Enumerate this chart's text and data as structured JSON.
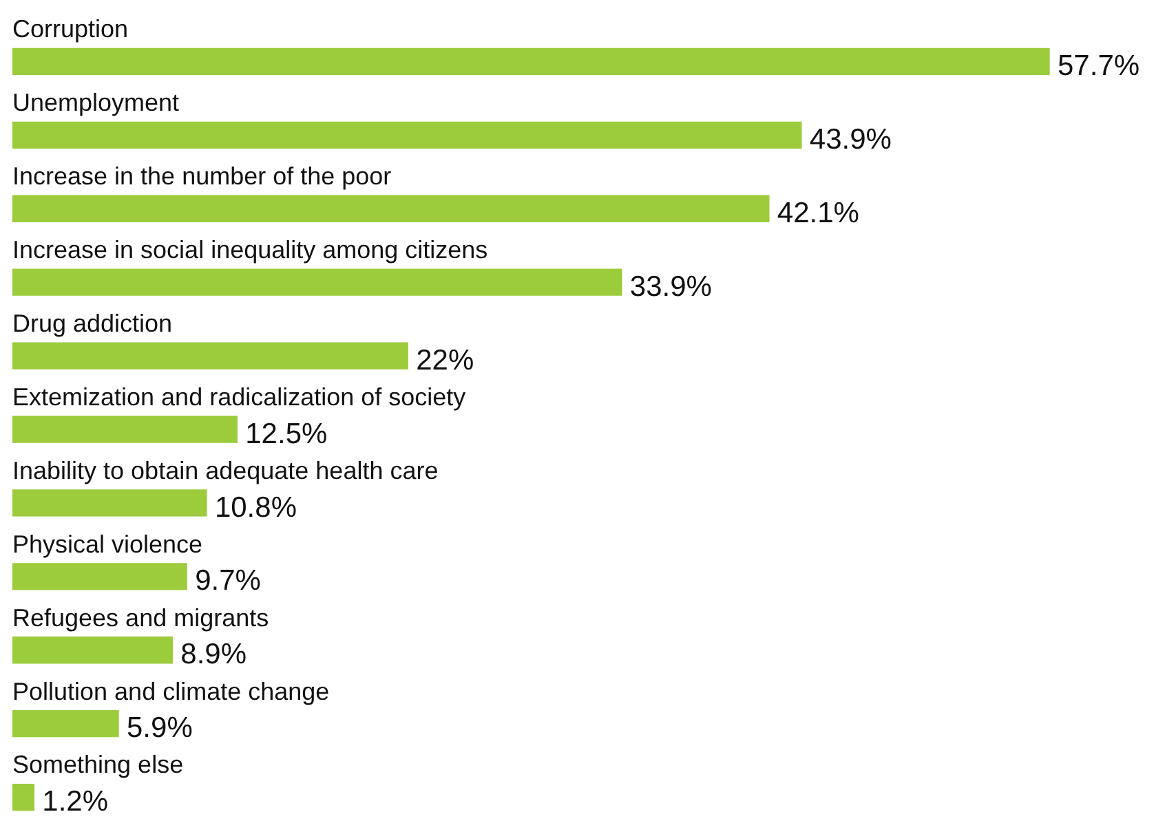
{
  "chart_data": {
    "type": "bar",
    "orientation": "horizontal",
    "categories": [
      "Corruption",
      "Unemployment",
      "Increase in the number of the poor",
      "Increase in social inequality among citizens",
      "Drug addiction",
      "Extemization and radicalization of society",
      "Inability to obtain adequate health care",
      "Physical violence",
      "Refugees and migrants",
      "Pollution and climate change",
      "Something else"
    ],
    "values": [
      57.7,
      43.9,
      42.1,
      33.9,
      22,
      12.5,
      10.8,
      9.7,
      8.9,
      5.9,
      1.2
    ],
    "value_labels": [
      "57.7%",
      "43.9%",
      "42.1%",
      "33.9%",
      "22%",
      "12.5%",
      "10.8%",
      "9.7%",
      "8.9%",
      "5.9%",
      "1.2%"
    ],
    "color": "#9ccb3b",
    "legend": false
  }
}
